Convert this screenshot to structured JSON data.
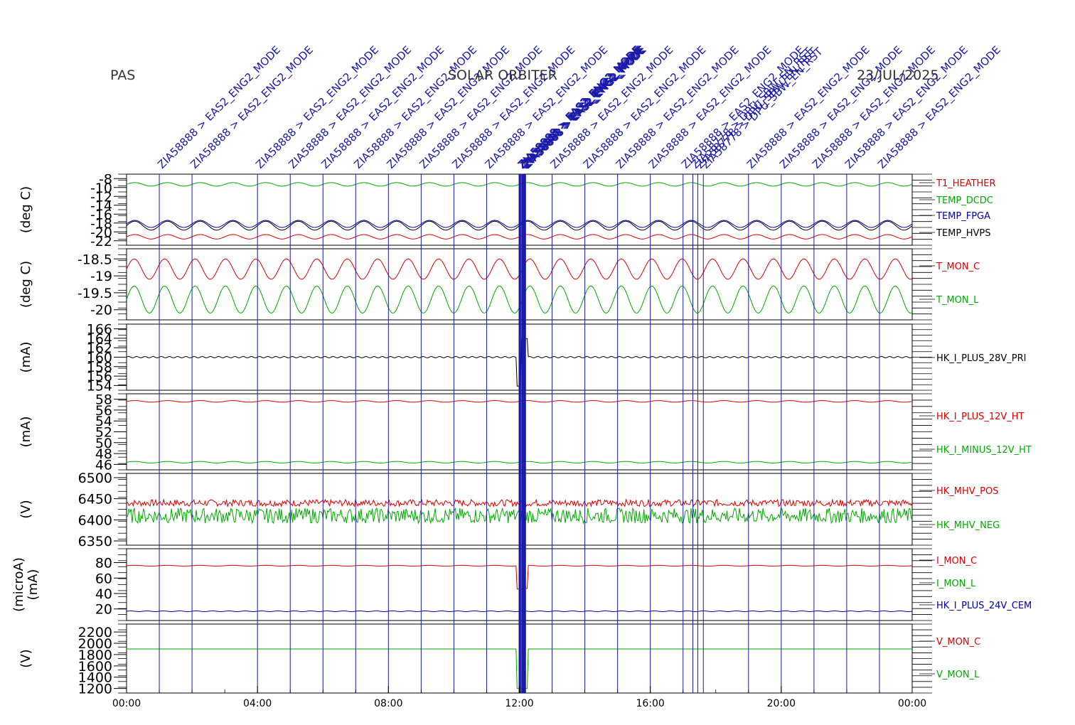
{
  "header": {
    "left": "PAS",
    "center": "SOLAR ORBITER",
    "right": "23/JUL/2025"
  },
  "colors": {
    "red": "#dd0000",
    "green": "#00aa00",
    "blue": "#0000aa",
    "black": "#000000",
    "event": "#1a1aaa"
  },
  "events": {
    "regular_label": "ZIA58888 > EAS2_ENG2_MODE",
    "regular_hours": [
      1.0,
      2.0,
      4.0,
      5.0,
      6.0,
      7.0,
      8.0,
      9.0,
      10.0,
      11.0,
      13.0,
      14.0,
      15.0,
      16.0,
      17.0,
      19.0,
      20.0,
      21.0,
      22.0,
      23.0
    ],
    "cluster_hours": [
      12.0,
      12.03,
      12.08,
      12.12,
      12.15,
      12.18
    ],
    "late_hours": [
      17.3,
      17.45,
      17.62
    ],
    "late_label": "ZIA58778 > DPU_SBW_EN_RST"
  },
  "chart_data": [
    {
      "type": "line",
      "ylabel": "(deg C)",
      "ylim": [
        -23,
        -7
      ],
      "ticks": [
        -8,
        -10,
        -12,
        -14,
        -16,
        -18,
        -20,
        -22
      ],
      "series": [
        {
          "name": "T1_HEATHER",
          "color": "red",
          "mean": -21.1,
          "amp": 0.5,
          "period_h": 1.0
        },
        {
          "name": "TEMP_DCDC",
          "color": "green",
          "mean": -9.3,
          "amp": 0.4,
          "period_h": 1.0
        },
        {
          "name": "TEMP_FPGA",
          "color": "blue",
          "mean": -18.2,
          "amp": 0.8,
          "period_h": 1.0
        },
        {
          "name": "TEMP_HVPS",
          "color": "black",
          "mean": -18.6,
          "amp": 1.0,
          "period_h": 1.0
        }
      ]
    },
    {
      "type": "line",
      "ylabel": "(deg C)",
      "ylim": [
        -20.3,
        -18.2
      ],
      "ticks": [
        -18.5,
        -19.0,
        -19.5,
        -20.0
      ],
      "series": [
        {
          "name": "T_MON_C",
          "color": "red",
          "mean": -18.8,
          "amp": 0.3,
          "period_h": 0.93
        },
        {
          "name": "T_MON_L",
          "color": "green",
          "mean": -19.7,
          "amp": 0.4,
          "period_h": 0.93
        }
      ]
    },
    {
      "type": "line",
      "ylabel": "(mA)",
      "ylim": [
        153,
        167
      ],
      "ticks": [
        166,
        164,
        162,
        160,
        158,
        156,
        154
      ],
      "series": [
        {
          "name": "HK_I_PLUS_28V_PRI",
          "color": "black",
          "mean": 160.0,
          "amp": 0.15,
          "period_h": 0.25
        }
      ]
    },
    {
      "type": "line",
      "ylabel": "(mA)",
      "ylim": [
        45,
        59
      ],
      "ticks": [
        58,
        56,
        54,
        52,
        50,
        48,
        46
      ],
      "series": [
        {
          "name": "HK_I_PLUS_12V_HT",
          "color": "red",
          "mean": 57.6,
          "amp": 0.15,
          "period_h": 1.0
        },
        {
          "name": "HK_I_MINUS_12V_HT",
          "color": "green",
          "mean": 46.4,
          "amp": 0.15,
          "period_h": 1.0
        }
      ]
    },
    {
      "type": "line",
      "ylabel": "(V)",
      "ylim": [
        6340,
        6510
      ],
      "ticks": [
        6500,
        6450,
        6400,
        6350
      ],
      "series": [
        {
          "name": "HK_MHV_POS",
          "color": "red",
          "mean": 6440,
          "amp": 8,
          "period_h": 0
        },
        {
          "name": "HK_MHV_NEG",
          "color": "green",
          "mean": 6410,
          "amp": 18,
          "period_h": 0
        }
      ]
    },
    {
      "type": "line",
      "ylabel": "(microA)",
      "ylabel2": "(mA)",
      "ylim": [
        5,
        98
      ],
      "ticks": [
        80,
        60,
        40,
        20
      ],
      "series": [
        {
          "name": "I_MON_C",
          "color": "red",
          "mean": 76,
          "amp": 0.5,
          "period_h": 1.0
        },
        {
          "name": "I_MON_L",
          "color": "green",
          "mean": null,
          "amp": 0,
          "period_h": 0
        },
        {
          "name": "HK_I_PLUS_24V_CEM",
          "color": "blue",
          "mean": 17,
          "amp": 0.5,
          "period_h": 0.5
        }
      ]
    },
    {
      "type": "line",
      "ylabel": "(V)",
      "ylim": [
        1120,
        2340
      ],
      "ticks": [
        2200,
        2000,
        1800,
        1600,
        1400,
        1200
      ],
      "series": [
        {
          "name": "V_MON_C",
          "color": "red",
          "mean": null,
          "amp": 0,
          "period_h": 0
        },
        {
          "name": "V_MON_L",
          "color": "green",
          "mean": 1900,
          "amp": 0,
          "period_h": 0
        }
      ]
    }
  ],
  "xaxis": {
    "ticks": [
      "00:00",
      "04:00",
      "08:00",
      "12:00",
      "16:00",
      "20:00",
      "00:00"
    ],
    "xlim_hours": [
      0,
      24
    ]
  }
}
